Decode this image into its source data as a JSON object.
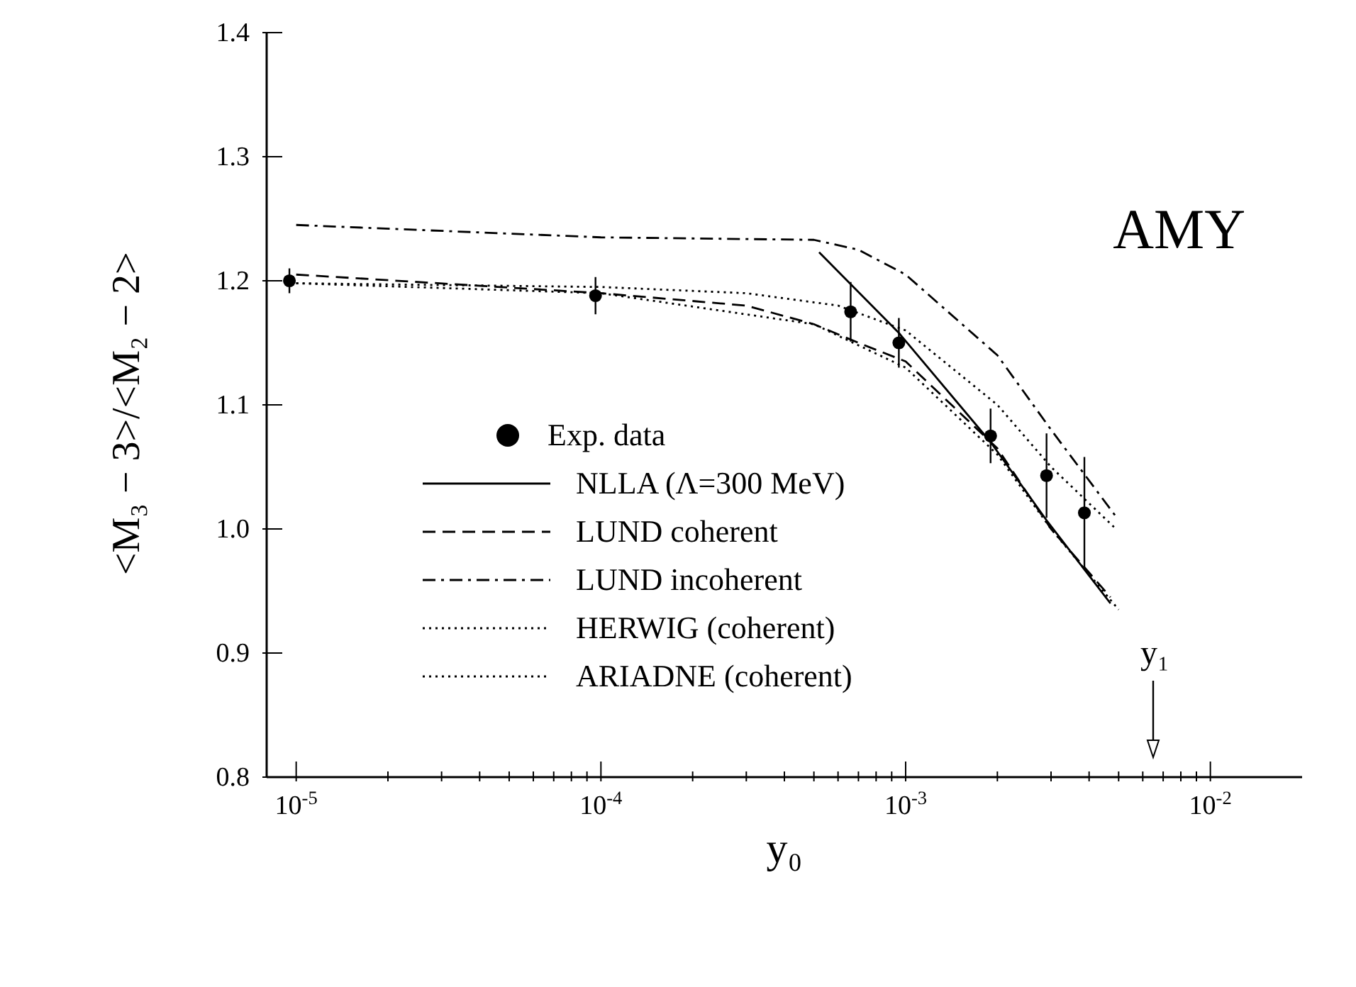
{
  "chart_data": {
    "type": "line",
    "xlabel": "y₀",
    "ylabel": "<M₃ − 3>/<M₂ − 2>",
    "log": "x",
    "xlim": [
      8e-06,
      0.02
    ],
    "ylim": [
      0.8,
      1.4
    ],
    "xticks": [
      {
        "value": 1e-05,
        "label": "10$^{-5}$"
      },
      {
        "value": 2e-05,
        "label": null
      },
      {
        "value": 3e-05,
        "label": null
      },
      {
        "value": 4e-05,
        "label": null
      },
      {
        "value": 5e-05,
        "label": null
      },
      {
        "value": 6e-05,
        "label": null
      },
      {
        "value": 7e-05,
        "label": null
      },
      {
        "value": 8e-05,
        "label": null
      },
      {
        "value": 9e-05,
        "label": null
      },
      {
        "value": 0.0001,
        "label": "10$^{-4}$"
      },
      {
        "value": 0.0002,
        "label": null
      },
      {
        "value": 0.0003,
        "label": null
      },
      {
        "value": 0.0004,
        "label": null
      },
      {
        "value": 0.0005,
        "label": null
      },
      {
        "value": 0.0006,
        "label": null
      },
      {
        "value": 0.0007,
        "label": null
      },
      {
        "value": 0.0008,
        "label": null
      },
      {
        "value": 0.0009,
        "label": null
      },
      {
        "value": 0.001,
        "label": "10$^{-3}$"
      },
      {
        "value": 0.002,
        "label": null
      },
      {
        "value": 0.003,
        "label": null
      },
      {
        "value": 0.004,
        "label": null
      },
      {
        "value": 0.005,
        "label": null
      },
      {
        "value": 0.006,
        "label": null
      },
      {
        "value": 0.007,
        "label": null
      },
      {
        "value": 0.008,
        "label": null
      },
      {
        "value": 0.009,
        "label": null
      },
      {
        "value": 0.01,
        "label": "10$^{-2}$"
      }
    ],
    "yticks": [
      0.8,
      0.9,
      {
        "value": 1,
        "label": "1.0"
      },
      1.1,
      1.2,
      1.3,
      1.4
    ],
    "grid": false,
    "legend": "bottom left",
    "series": [
      {
        "name": "Exp. data",
        "type": "scatter",
        "marker": "circle",
        "color": "#000000",
        "x": [
          9.5e-06,
          9.6e-05,
          0.00066,
          0.00095,
          0.0019,
          0.0029,
          0.00386
        ],
        "values": [
          1.2,
          1.188,
          1.175,
          1.15,
          1.075,
          1.043,
          1.013
        ],
        "errors": [
          0.01,
          0.015,
          0.024,
          0.02,
          0.022,
          0.034,
          0.045
        ]
      },
      {
        "name": "NLLA (Λ=300 MeV)",
        "line_style": "solid",
        "color": "#000000",
        "x": [
          0.00052,
          0.00095,
          0.0019,
          0.0029,
          0.0047
        ],
        "values": [
          1.223,
          1.158,
          1.07,
          1.007,
          0.94
        ]
      },
      {
        "name": "LUND coherent",
        "line_style": "dashed",
        "color": "#000000",
        "x": [
          1e-05,
          0.0001,
          0.0003,
          0.0005,
          0.0007,
          0.001,
          0.002,
          0.003,
          0.0047
        ],
        "values": [
          1.205,
          1.19,
          1.18,
          1.165,
          1.15,
          1.135,
          1.065,
          1.0,
          0.945
        ]
      },
      {
        "name": "LUND incoherent",
        "line_style": "dashdot",
        "color": "#000000",
        "x": [
          1e-05,
          0.0001,
          0.0005,
          0.0007,
          0.001,
          0.002,
          0.003,
          0.0049
        ],
        "values": [
          1.245,
          1.235,
          1.233,
          1.225,
          1.205,
          1.14,
          1.08,
          1.01
        ]
      },
      {
        "name": "HERWIG (coherent)",
        "line_style": "dotted",
        "color": "#000000",
        "x": [
          1e-05,
          0.0001,
          0.0005,
          0.001,
          0.002,
          0.003,
          0.005
        ],
        "values": [
          1.198,
          1.19,
          1.165,
          1.13,
          1.06,
          1.0,
          0.935
        ]
      },
      {
        "name": "ARIADNE (coherent)",
        "line_style": "dotted",
        "color": "#000000",
        "x": [
          1e-05,
          0.0001,
          0.0003,
          0.0006,
          0.001,
          0.002,
          0.003,
          0.0049
        ],
        "values": [
          1.198,
          1.195,
          1.19,
          1.18,
          1.16,
          1.1,
          1.05,
          1.0
        ]
      }
    ],
    "annotations": [
      "AMY",
      "y₁"
    ]
  }
}
